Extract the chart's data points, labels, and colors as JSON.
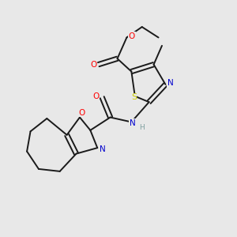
{
  "bg_color": "#e8e8e8",
  "bond_color": "#1a1a1a",
  "atom_colors": {
    "O": "#ff0000",
    "N": "#0000cd",
    "S": "#cccc00",
    "C": "#1a1a1a",
    "H": "#7f9f9f"
  },
  "lw": 1.4,
  "fs": 7.0,
  "xlim": [
    0,
    10
  ],
  "ylim": [
    0,
    10
  ]
}
